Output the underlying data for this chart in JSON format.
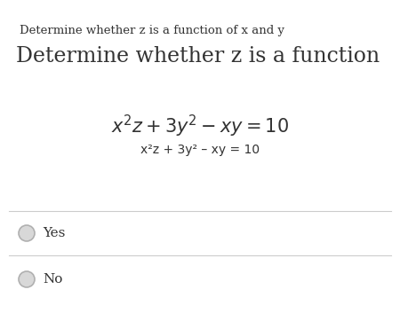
{
  "bg_color": "#ffffff",
  "small_title": "Determine whether z is a function of x and y",
  "large_title": "Determine whether z is a function",
  "math_line1": "$x^2 z + 3y^2 - xy = 10$",
  "plain_line2": "x²z + 3y² – xy = 10",
  "option1": "Yes",
  "option2": "No",
  "small_title_fontsize": 9.5,
  "large_title_fontsize": 17,
  "math_fontsize": 15,
  "plain_fontsize": 10,
  "option_fontsize": 11,
  "text_color": "#333333",
  "line_color": "#cccccc",
  "circle_edge_color": "#b0b0b0",
  "circle_face_color": "#d8d8d8"
}
